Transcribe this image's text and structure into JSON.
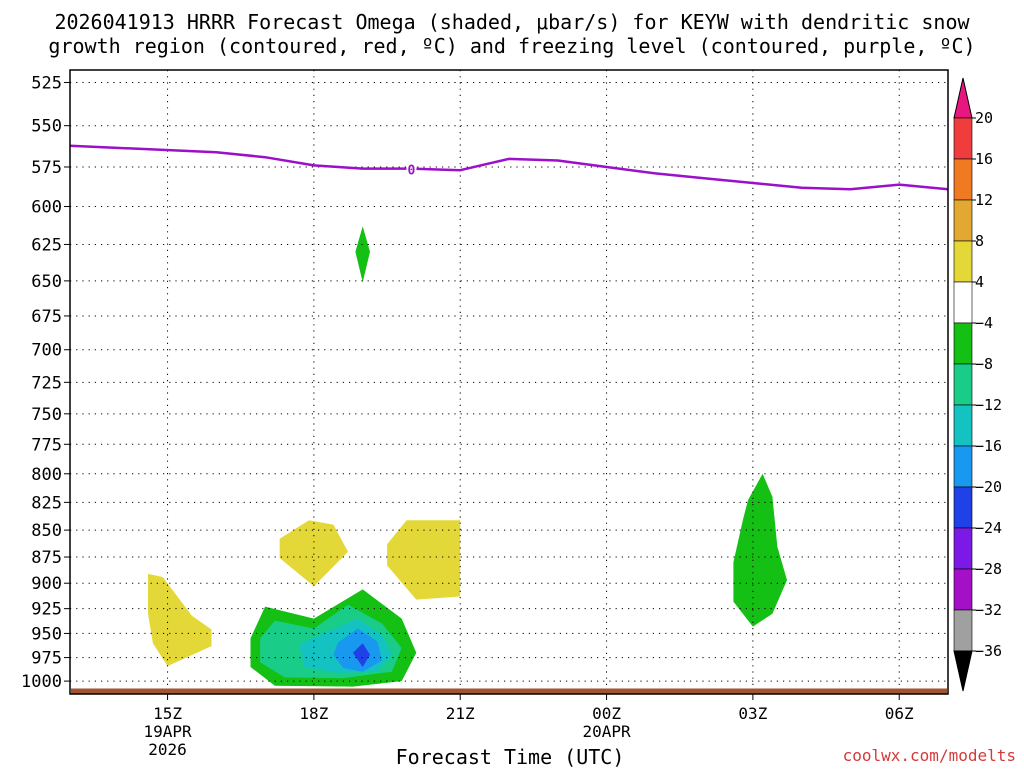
{
  "title_line1": "2026041913 HRRR Forecast Omega (shaded, μbar/s) for KEYW with dendritic snow",
  "title_line2": "growth region (contoured, red, ºC) and freezing level (contoured, purple, ºC)",
  "credit": "coolwx.com/modelts",
  "chart_data": {
    "type": "heatmap",
    "title": "2026041913 HRRR Forecast Omega (shaded, μbar/s) for KEYW with dendritic snow growth region (contoured, red, ºC) and freezing level (contoured, purple, ºC)",
    "xlabel": "Forecast Time (UTC)",
    "ylabel": "",
    "x_ticks": [
      {
        "hour": 15,
        "label": "15Z",
        "sub": [
          "19APR",
          "2026"
        ]
      },
      {
        "hour": 18,
        "label": "18Z",
        "sub": []
      },
      {
        "hour": 21,
        "label": "21Z",
        "sub": []
      },
      {
        "hour": 24,
        "label": "00Z",
        "sub": [
          "20APR"
        ]
      },
      {
        "hour": 27,
        "label": "03Z",
        "sub": []
      },
      {
        "hour": 30,
        "label": "06Z",
        "sub": []
      }
    ],
    "xlim": [
      13.0,
      31.0
    ],
    "y_ticks": [
      525,
      550,
      575,
      600,
      625,
      650,
      675,
      700,
      725,
      750,
      775,
      800,
      825,
      850,
      875,
      900,
      925,
      950,
      975,
      1000
    ],
    "ylim": [
      1014,
      518
    ],
    "y_scale": "log-pressure",
    "grid": true,
    "colorbar": {
      "labels": [
        "20",
        "16",
        "12",
        "8",
        "4",
        "−4",
        "−8",
        "−12",
        "−16",
        "−20",
        "−24",
        "−28",
        "−32",
        "−36"
      ],
      "colors": [
        "#e8177f",
        "#f03c3c",
        "#f07a22",
        "#e3a832",
        "#e3d838",
        "#ffffff",
        "#13c013",
        "#19cc88",
        "#15c2c2",
        "#1998f0",
        "#2040e8",
        "#7c19e6",
        "#a40fc8",
        "#a0a0a0",
        "#000000"
      ]
    },
    "freezing_level": {
      "color": "#9b10c8",
      "label": "0",
      "points": [
        [
          13.0,
          562
        ],
        [
          16.0,
          566
        ],
        [
          17.0,
          569
        ],
        [
          18.0,
          574
        ],
        [
          19.0,
          576
        ],
        [
          20.0,
          576
        ],
        [
          21.0,
          577
        ],
        [
          22.0,
          570
        ],
        [
          23.0,
          571
        ],
        [
          24.0,
          575
        ],
        [
          25.0,
          579
        ],
        [
          26.0,
          582
        ],
        [
          27.0,
          585
        ],
        [
          28.0,
          588
        ],
        [
          29.0,
          589
        ],
        [
          30.0,
          586
        ],
        [
          31.0,
          589
        ]
      ]
    },
    "omega_regions": [
      {
        "value": "4 to 8",
        "color": "#e3d838",
        "points": [
          [
            14.6,
            891
          ],
          [
            14.9,
            894
          ],
          [
            15.5,
            932
          ],
          [
            15.9,
            946
          ],
          [
            15.9,
            963
          ],
          [
            15.0,
            984
          ],
          [
            14.7,
            960
          ],
          [
            14.6,
            930
          ]
        ]
      },
      {
        "value": "4 to 8",
        "color": "#e3d838",
        "points": [
          [
            17.3,
            858
          ],
          [
            17.9,
            841
          ],
          [
            18.4,
            845
          ],
          [
            18.7,
            870
          ],
          [
            18.0,
            903
          ],
          [
            17.3,
            876
          ]
        ]
      },
      {
        "value": "4 to 8",
        "color": "#e3d838",
        "points": [
          [
            19.5,
            863
          ],
          [
            19.9,
            841
          ],
          [
            21.0,
            841
          ],
          [
            21.0,
            913
          ],
          [
            20.1,
            916
          ],
          [
            19.5,
            883
          ]
        ]
      },
      {
        "value": "-4 to -8",
        "color": "#13c013",
        "points": [
          [
            19.0,
            613
          ],
          [
            19.15,
            630
          ],
          [
            19.0,
            651
          ],
          [
            18.85,
            630
          ]
        ]
      },
      {
        "value": "-4 to -8",
        "color": "#13c013",
        "points": [
          [
            26.9,
            823
          ],
          [
            27.2,
            800
          ],
          [
            27.4,
            820
          ],
          [
            27.5,
            865
          ],
          [
            27.7,
            897
          ],
          [
            27.4,
            930
          ],
          [
            27.0,
            943
          ],
          [
            26.6,
            918
          ],
          [
            26.6,
            880
          ],
          [
            26.8,
            840
          ]
        ]
      },
      {
        "value": "-4 to -8",
        "color": "#13c013",
        "points": [
          [
            16.7,
            955
          ],
          [
            17.0,
            923
          ],
          [
            18.0,
            935
          ],
          [
            19.0,
            906
          ],
          [
            19.8,
            935
          ],
          [
            20.1,
            970
          ],
          [
            19.8,
            1000
          ],
          [
            18.8,
            1006
          ],
          [
            17.2,
            1005
          ],
          [
            16.7,
            985
          ]
        ]
      },
      {
        "value": "-8 to -12",
        "color": "#19cc88",
        "points": [
          [
            16.9,
            955
          ],
          [
            17.2,
            937
          ],
          [
            18.0,
            945
          ],
          [
            18.7,
            921
          ],
          [
            19.4,
            940
          ],
          [
            19.8,
            965
          ],
          [
            19.6,
            990
          ],
          [
            18.6,
            997
          ],
          [
            17.4,
            996
          ],
          [
            16.9,
            980
          ]
        ]
      },
      {
        "value": "-12 to -16",
        "color": "#15c2c2",
        "points": [
          [
            17.7,
            961
          ],
          [
            18.2,
            950
          ],
          [
            18.9,
            935
          ],
          [
            19.4,
            952
          ],
          [
            19.6,
            972
          ],
          [
            19.3,
            990
          ],
          [
            18.5,
            991
          ],
          [
            17.8,
            985
          ]
        ]
      },
      {
        "value": "-16 to -20",
        "color": "#1998f0",
        "points": [
          [
            18.5,
            959
          ],
          [
            18.9,
            945
          ],
          [
            19.3,
            958
          ],
          [
            19.4,
            978
          ],
          [
            19.0,
            990
          ],
          [
            18.6,
            986
          ],
          [
            18.4,
            972
          ]
        ]
      },
      {
        "value": "-20 to -24",
        "color": "#2040e8",
        "points": [
          [
            18.8,
            970
          ],
          [
            19.0,
            960
          ],
          [
            19.15,
            972
          ],
          [
            19.0,
            985
          ]
        ]
      }
    ],
    "terrain": {
      "color": "#a05530",
      "top_pressure": 1008
    }
  }
}
